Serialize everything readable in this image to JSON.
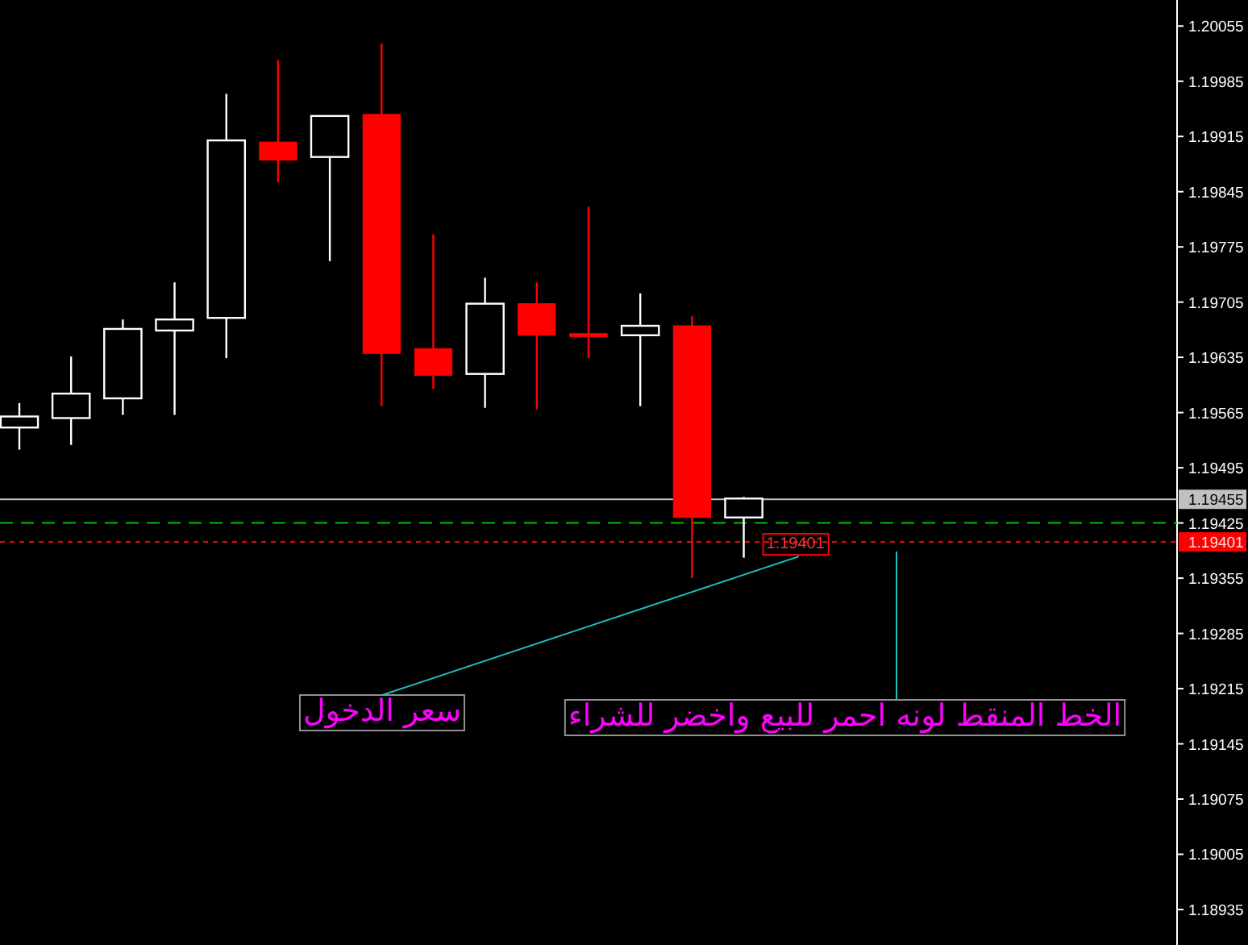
{
  "chart_data": {
    "type": "candlestick",
    "categories": [
      null,
      null,
      null,
      null,
      null,
      null,
      null,
      null,
      null,
      null,
      null,
      null,
      null,
      null,
      null,
      null,
      null,
      null,
      null,
      null,
      null,
      null,
      null
    ],
    "ohlc": [
      [
        1.19546,
        1.19577,
        1.19518,
        1.1956
      ],
      [
        1.19558,
        1.19636,
        1.19524,
        1.19589
      ],
      [
        1.19583,
        1.19683,
        1.19562,
        1.19671
      ],
      [
        1.19669,
        1.1973,
        1.19562,
        1.19683
      ],
      [
        1.19685,
        1.19969,
        1.19634,
        1.1991
      ],
      [
        1.19908,
        1.20012,
        1.19857,
        1.19885
      ],
      [
        1.19889,
        1.19941,
        1.19757,
        1.19941
      ],
      [
        1.19943,
        1.20033,
        1.19573,
        1.1964
      ],
      [
        1.19646,
        1.19791,
        1.19595,
        1.19612
      ],
      [
        1.19614,
        1.19736,
        1.19571,
        1.19703
      ],
      [
        1.19703,
        1.1973,
        1.19569,
        1.19663
      ],
      [
        1.19665,
        1.19826,
        1.19634,
        1.19661
      ],
      [
        1.19663,
        1.19716,
        1.19573,
        1.19675
      ],
      [
        1.19675,
        1.19687,
        1.19355,
        1.19432
      ],
      [
        1.19432,
        1.19458,
        1.19381,
        1.19456
      ],
      null,
      null,
      null,
      null,
      null,
      null,
      null,
      null
    ],
    "colors": [
      "#ffffff",
      "#ffffff",
      "#ffffff",
      "#ffffff",
      "#ffffff",
      "#ff0000",
      "#ffffff",
      "#ff0000",
      "#ff0000",
      "#ffffff",
      "#ff0000",
      "#ff0000",
      "#ffffff",
      "#ff0000",
      "#ffffff",
      null,
      null,
      null,
      null,
      null,
      null,
      null,
      null
    ],
    "ylim": [
      1.1889,
      1.20088
    ],
    "yticks": [
      1.20055,
      1.19985,
      1.19915,
      1.19845,
      1.19775,
      1.19705,
      1.19635,
      1.19565,
      1.19495,
      1.19425,
      1.19355,
      1.19285,
      1.19215,
      1.19145,
      1.19075,
      1.19005,
      1.18935
    ],
    "tick_labels": "y",
    "grid": false,
    "ref_lines": [
      {
        "axis": "y",
        "value": 1.19455,
        "label": "1.19455",
        "color": "#c0c0c0",
        "line_style": "solid"
      },
      {
        "axis": "y",
        "value": 1.19425,
        "color": "#00c000",
        "line_style": "dashed"
      },
      {
        "axis": "y",
        "value": 1.19401,
        "label": "1.19401",
        "color": "#ff0000",
        "line_style": "dotted"
      }
    ],
    "annotations": [
      {
        "text": "1.19401",
        "y": 1.19401
      },
      "سعر الدخول",
      "الخط المنقط لونه احمر للبيع واخضر للشراء"
    ]
  }
}
